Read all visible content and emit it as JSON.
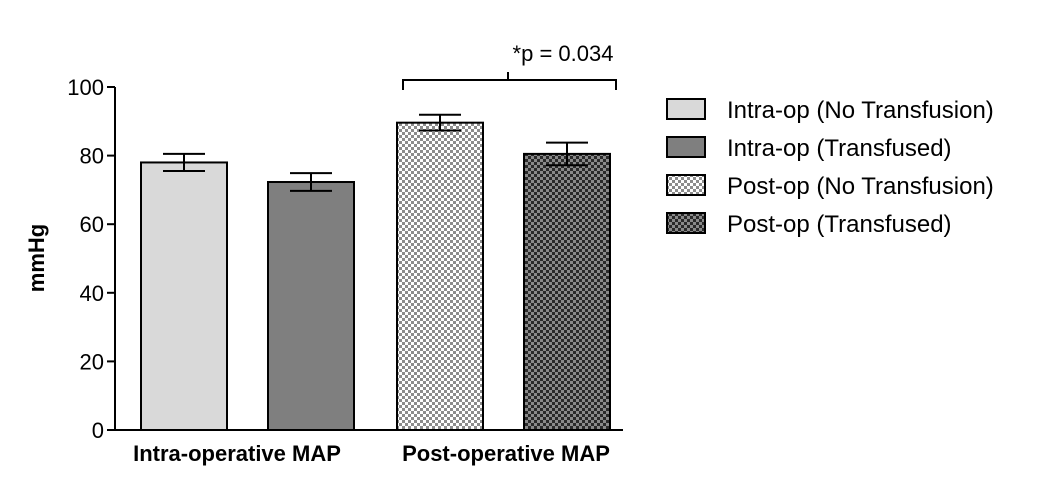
{
  "chart_data": {
    "type": "bar",
    "title": "",
    "xlabel": "",
    "ylabel": "mmHg",
    "ylim": [
      0,
      100
    ],
    "yticks": [
      0,
      20,
      40,
      60,
      80,
      100
    ],
    "categories": [
      "Intra-operative MAP",
      "Post-operative MAP"
    ],
    "series": [
      {
        "name": "Intra-op (No Transfusion)",
        "category": "Intra-operative MAP",
        "value": 78,
        "error": 2.5,
        "fill": "#d9d9d9",
        "pattern": "solid"
      },
      {
        "name": "Intra-op (Transfused)",
        "category": "Intra-operative MAP",
        "value": 72.3,
        "error": 2.6,
        "fill": "#7f7f7f",
        "pattern": "solid"
      },
      {
        "name": "Post-op (No Transfusion)",
        "category": "Post-operative MAP",
        "value": 89.6,
        "error": 2.3,
        "fill": "#bdbdbd",
        "pattern": "checker-light"
      },
      {
        "name": "Post-op (Transfused)",
        "category": "Post-operative MAP",
        "value": 80.5,
        "error": 3.3,
        "fill": "#555555",
        "pattern": "checker-dark"
      }
    ],
    "grid": false,
    "legend_position": "right",
    "annotation": {
      "text": "*p = 0.034",
      "between": [
        "Post-op (No Transfusion)",
        "Post-op (Transfused)"
      ]
    }
  }
}
